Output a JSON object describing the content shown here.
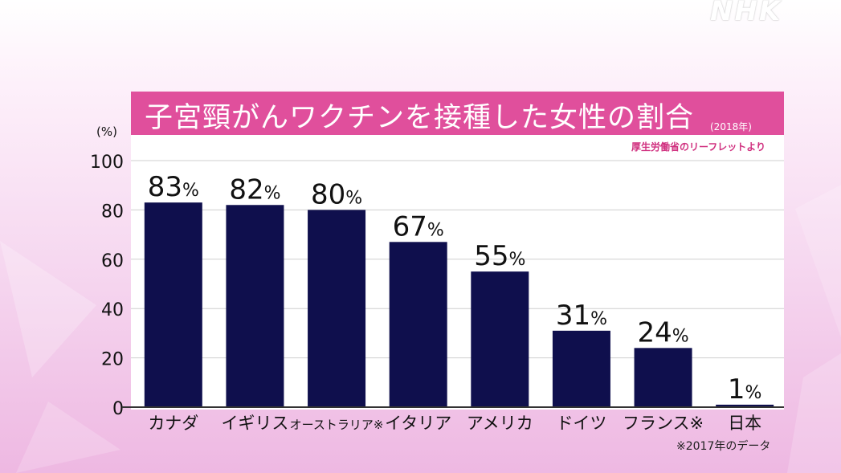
{
  "logo": "NHK",
  "title": "子宮頸がんワクチンを接種した女性の割合",
  "year_note": "(2018年)",
  "source_note": "厚生労働省のリーフレットより",
  "footnote": "※2017年のデータ",
  "colors": {
    "bar": "#0f0f4d",
    "accent": "#e04f9c",
    "plot_bg": "#ffffff"
  },
  "chart_data": {
    "type": "bar",
    "title": "子宮頸がんワクチンを接種した女性の割合",
    "xlabel": "",
    "ylabel": "(%)",
    "ylim": [
      0,
      100
    ],
    "yticks": [
      0,
      20,
      40,
      60,
      80,
      100
    ],
    "grid": true,
    "categories": [
      "カナダ",
      "イギリス",
      "オーストラリア※",
      "イタリア",
      "アメリカ",
      "ドイツ",
      "フランス※",
      "日本"
    ],
    "values": [
      83,
      82,
      80,
      67,
      55,
      31,
      24,
      1
    ],
    "data_labels": [
      "83%",
      "82%",
      "80%",
      "67%",
      "55%",
      "31%",
      "24%",
      "1%"
    ]
  }
}
